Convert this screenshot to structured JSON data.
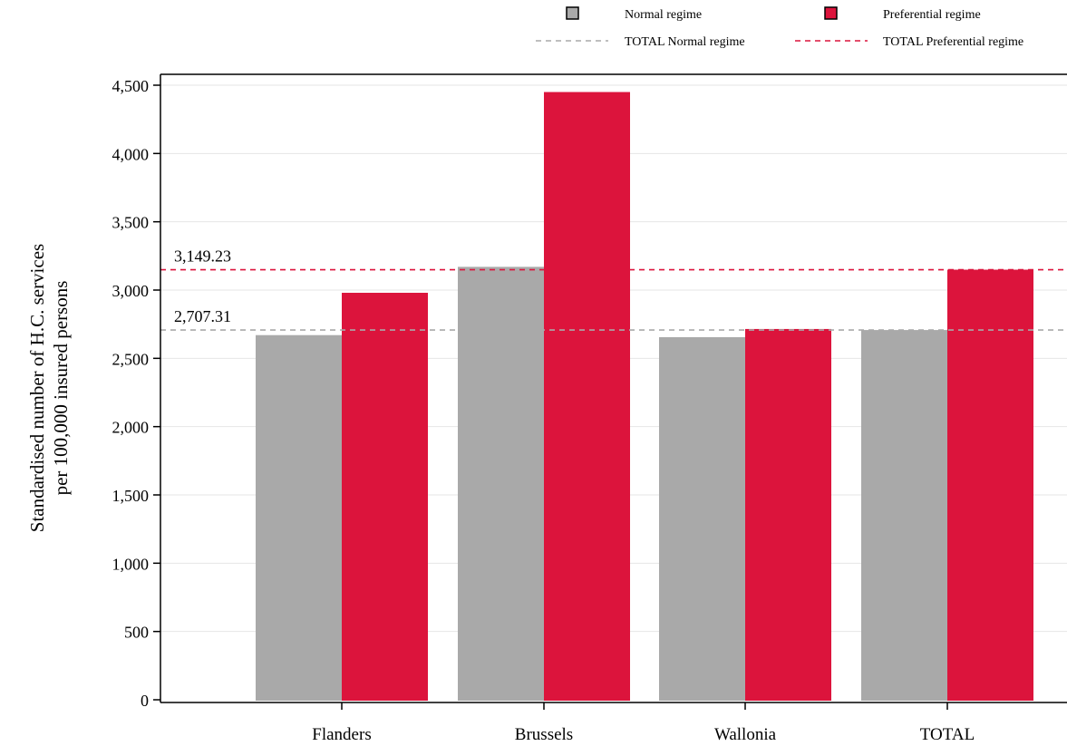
{
  "chart_data": {
    "type": "bar",
    "categories": [
      "Flanders",
      "Brussels",
      "Wallonia",
      "TOTAL"
    ],
    "series": [
      {
        "name": "Normal regime",
        "color": "#a9a9a9",
        "values": [
          2670,
          3170,
          2655,
          2707.31
        ]
      },
      {
        "name": "Preferential regime",
        "color": "#dc143c",
        "values": [
          2980,
          4450,
          2715,
          3149.23
        ]
      }
    ],
    "reference_lines": [
      {
        "name": "TOTAL Normal regime",
        "value": 2707.31,
        "label": "2,707.31",
        "color": "#a9a9a9",
        "style": "dashed"
      },
      {
        "name": "TOTAL Preferential regime",
        "value": 3149.23,
        "label": "3,149.23",
        "color": "#dc143c",
        "style": "dashed"
      }
    ],
    "ylabel_lines": [
      "Standardised number of H.C. services",
      "per 100,000 insured persons"
    ],
    "xlabel": "",
    "ylim": [
      0,
      4500
    ],
    "yticks": [
      0,
      500,
      1000,
      1500,
      2000,
      2500,
      3000,
      3500,
      4000,
      4500
    ],
    "ytick_labels": [
      "0",
      "500",
      "1,000",
      "1,500",
      "2,000",
      "2,500",
      "3,000",
      "3,500",
      "4,000",
      "4,500"
    ],
    "grid": true,
    "legend_position": "top"
  }
}
